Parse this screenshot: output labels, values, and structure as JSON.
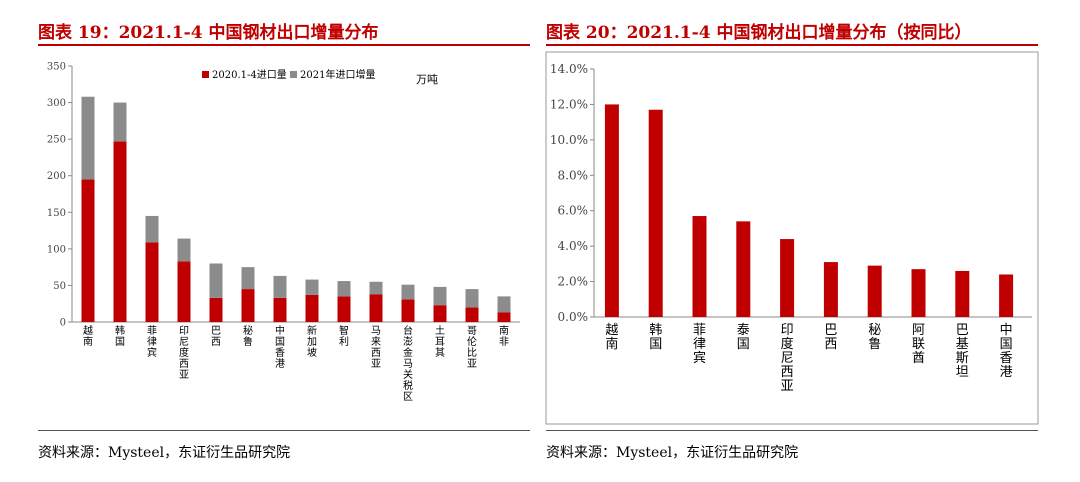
{
  "figures": [
    {
      "title": "图表 19：2021.1-4 中国钢材出口增量分布",
      "source": "资料来源：Mysteel，东证衍生品研究院"
    },
    {
      "title": "图表 20：2021.1-4 中国钢材出口增量分布（按同比）",
      "source": "资料来源：Mysteel，东证衍生品研究院"
    }
  ],
  "chart_data": [
    {
      "type": "bar",
      "stacked": true,
      "unit_note": "万吨",
      "categories": [
        "越南",
        "韩国",
        "菲律宾",
        "印尼度西亚",
        "巴西",
        "秘鲁",
        "中国香港",
        "新加坡",
        "智利",
        "马来西亚",
        "台澎金马关税区",
        "土耳其",
        "哥伦比亚",
        "南非"
      ],
      "series": [
        {
          "name": "2020.1-4进口量",
          "color": "#c00000",
          "values": [
            195,
            247,
            109,
            83,
            33,
            45,
            33,
            37,
            35,
            38,
            31,
            23,
            20,
            13
          ]
        },
        {
          "name": "2021年进口增量",
          "color": "#8c8c8c",
          "values": [
            113,
            53,
            36,
            31,
            47,
            30,
            30,
            21,
            21,
            17,
            20,
            25,
            25,
            22
          ]
        }
      ],
      "ylim": [
        0,
        350
      ],
      "yticks": [
        0,
        50,
        100,
        150,
        200,
        250,
        300,
        350
      ],
      "legend": "top"
    },
    {
      "type": "bar",
      "categories": [
        "越南",
        "韩国",
        "菲律宾",
        "泰国",
        "印度尼西亚",
        "巴西",
        "秘鲁",
        "阿联酋",
        "巴基斯坦",
        "中国香港"
      ],
      "values": [
        12.0,
        11.7,
        5.7,
        5.4,
        4.4,
        3.1,
        2.9,
        2.7,
        2.6,
        2.4
      ],
      "color": "#c00000",
      "ylim": [
        0,
        14
      ],
      "yticks": [
        "0.0%",
        "2.0%",
        "4.0%",
        "6.0%",
        "8.0%",
        "10.0%",
        "12.0%",
        "14.0%"
      ]
    }
  ]
}
